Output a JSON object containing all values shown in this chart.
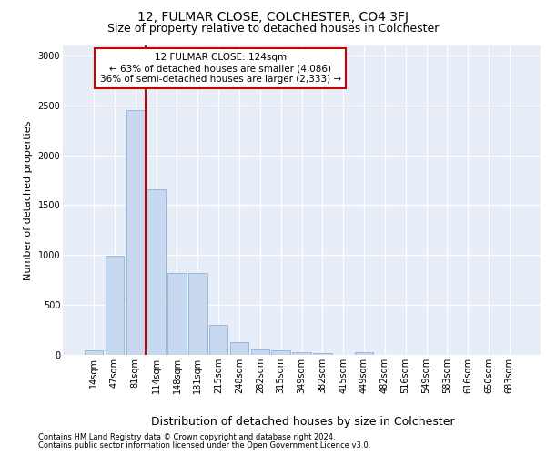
{
  "title": "12, FULMAR CLOSE, COLCHESTER, CO4 3FJ",
  "subtitle": "Size of property relative to detached houses in Colchester",
  "xlabel": "Distribution of detached houses by size in Colchester",
  "ylabel": "Number of detached properties",
  "categories": [
    "14sqm",
    "47sqm",
    "81sqm",
    "114sqm",
    "148sqm",
    "181sqm",
    "215sqm",
    "248sqm",
    "282sqm",
    "315sqm",
    "349sqm",
    "382sqm",
    "415sqm",
    "449sqm",
    "482sqm",
    "516sqm",
    "549sqm",
    "583sqm",
    "616sqm",
    "650sqm",
    "683sqm"
  ],
  "values": [
    50,
    990,
    2450,
    1660,
    825,
    825,
    300,
    130,
    55,
    50,
    30,
    20,
    0,
    30,
    0,
    0,
    0,
    0,
    0,
    0,
    0
  ],
  "bar_color": "#c8d9ef",
  "bar_edge_color": "#8ab4d8",
  "vline_color": "#cc0000",
  "vline_position": 2.5,
  "annotation_text": "12 FULMAR CLOSE: 124sqm\n← 63% of detached houses are smaller (4,086)\n36% of semi-detached houses are larger (2,333) →",
  "annotation_box_facecolor": "#ffffff",
  "annotation_box_edgecolor": "#cc0000",
  "ylim": [
    0,
    3100
  ],
  "yticks": [
    0,
    500,
    1000,
    1500,
    2000,
    2500,
    3000
  ],
  "bg_color": "#e8eef8",
  "title_fontsize": 10,
  "subtitle_fontsize": 9,
  "tick_fontsize": 7,
  "ylabel_fontsize": 8,
  "xlabel_fontsize": 9,
  "annotation_fontsize": 7.5,
  "footer_line1": "Contains HM Land Registry data © Crown copyright and database right 2024.",
  "footer_line2": "Contains public sector information licensed under the Open Government Licence v3.0.",
  "footer_fontsize": 6
}
